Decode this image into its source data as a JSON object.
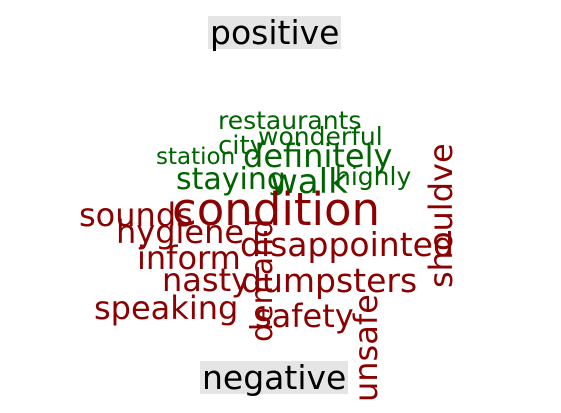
{
  "cloud": {
    "positive_label": "positive",
    "negative_label": "negative",
    "colors": {
      "positive": "#006400",
      "negative": "#8b0000",
      "label_bg": "#e5e5e5"
    },
    "positive_words": [
      "restaurants",
      "wonderful",
      "city",
      "definitely",
      "station",
      "staying",
      "walk",
      "highly"
    ],
    "negative_words": [
      "condition",
      "sounds",
      "hygiene",
      "disappointed",
      "inform",
      "demand",
      "nasty",
      "dumpsters",
      "speaking",
      "safety",
      "unsafe",
      "shouldve"
    ]
  }
}
